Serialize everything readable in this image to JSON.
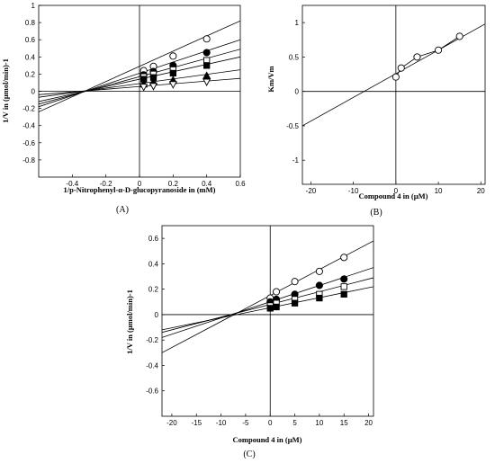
{
  "chart_data": [
    {
      "id": "A",
      "type": "line",
      "panel_label": "(A)",
      "xlabel": "1/p-Nitrophenyl-α-D-glucopyranoside in (mM)",
      "ylabel": "1/V in (µmol/min)-1",
      "xlim": [
        -0.6,
        0.6
      ],
      "ylim": [
        -1.0,
        1.0
      ],
      "xticks": [
        "-0.4",
        "-0.2",
        "0",
        "0.2",
        "0.4",
        "0.6"
      ],
      "yticks": [
        "-0.8",
        "-0.6",
        "-0.4",
        "-0.2",
        "0",
        "0.2",
        "0.4",
        "0.6",
        "0.8",
        "1"
      ],
      "series": [
        {
          "marker": "open-circle",
          "x": [
            0.025,
            0.083,
            0.2,
            0.4
          ],
          "y": [
            0.24,
            0.29,
            0.41,
            0.61
          ],
          "fit": {
            "x": [
              -0.6,
              0.6
            ],
            "y": [
              -0.24,
              0.82
            ]
          }
        },
        {
          "marker": "filled-circle",
          "x": [
            0.025,
            0.083,
            0.2,
            0.4
          ],
          "y": [
            0.19,
            0.23,
            0.3,
            0.45
          ],
          "fit": {
            "x": [
              -0.6,
              0.6
            ],
            "y": [
              -0.18,
              0.6
            ]
          }
        },
        {
          "marker": "open-square",
          "x": [
            0.025,
            0.083,
            0.2,
            0.4
          ],
          "y": [
            0.17,
            0.2,
            0.25,
            0.36
          ],
          "fit": {
            "x": [
              -0.6,
              0.6
            ],
            "y": [
              -0.15,
              0.49
            ]
          }
        },
        {
          "marker": "filled-square",
          "x": [
            0.025,
            0.083,
            0.2,
            0.4
          ],
          "y": [
            0.14,
            0.16,
            0.21,
            0.3
          ],
          "fit": {
            "x": [
              -0.6,
              0.6
            ],
            "y": [
              -0.12,
              0.4
            ]
          }
        },
        {
          "marker": "filled-triangle",
          "x": [
            0.025,
            0.083,
            0.2,
            0.4
          ],
          "y": [
            0.08,
            0.11,
            0.13,
            0.18
          ],
          "fit": {
            "x": [
              -0.6,
              0.6
            ],
            "y": [
              -0.07,
              0.25
            ]
          }
        },
        {
          "marker": "open-triangle-down",
          "x": [
            0.025,
            0.083,
            0.2,
            0.4
          ],
          "y": [
            0.05,
            0.06,
            0.08,
            0.11
          ],
          "fit": {
            "x": [
              -0.6,
              0.6
            ],
            "y": [
              -0.04,
              0.15
            ]
          }
        }
      ]
    },
    {
      "id": "B",
      "type": "line",
      "panel_label": "(B)",
      "xlabel": "Compound 4 in (µM)",
      "ylabel": "Km/Vm",
      "xlim": [
        -22,
        21
      ],
      "ylim": [
        -1.35,
        1.25
      ],
      "xticks": [
        "-20",
        "-10",
        "0",
        "10",
        "20"
      ],
      "yticks": [
        "-1",
        "-0.5",
        "0",
        "0.5",
        "1"
      ],
      "series": [
        {
          "marker": "open-circle",
          "x": [
            0,
            1.25,
            5,
            10,
            15
          ],
          "y": [
            0.21,
            0.34,
            0.5,
            0.6,
            0.8
          ],
          "connect": true,
          "fit": {
            "x": [
              -22,
              21
            ],
            "y": [
              -0.5,
              0.98
            ]
          }
        }
      ]
    },
    {
      "id": "C",
      "type": "line",
      "panel_label": "(C)",
      "xlabel": "Compound 4 in (µM)",
      "ylabel": "1/V in (µmol/min)-1",
      "xlim": [
        -22,
        21
      ],
      "ylim": [
        -0.8,
        0.7
      ],
      "xticks": [
        "-20",
        "-15",
        "-10",
        "-5",
        "0",
        "5",
        "10",
        "15",
        "20"
      ],
      "yticks": [
        "-0.6",
        "-0.4",
        "-0.2",
        "0",
        "0.2",
        "0.4",
        "0.6"
      ],
      "series": [
        {
          "marker": "open-circle",
          "x": [
            0,
            1.25,
            5,
            10,
            15
          ],
          "y": [
            0.13,
            0.18,
            0.26,
            0.34,
            0.45
          ],
          "fit": {
            "x": [
              -22,
              21
            ],
            "y": [
              -0.3,
              0.58
            ]
          }
        },
        {
          "marker": "filled-circle",
          "x": [
            0,
            1.25,
            5,
            10,
            15
          ],
          "y": [
            0.1,
            0.12,
            0.16,
            0.23,
            0.28
          ],
          "fit": {
            "x": [
              -22,
              21
            ],
            "y": [
              -0.18,
              0.37
            ]
          }
        },
        {
          "marker": "open-square",
          "x": [
            0,
            1.25,
            5,
            10,
            15
          ],
          "y": [
            0.07,
            0.09,
            0.12,
            0.16,
            0.22
          ],
          "fit": {
            "x": [
              -22,
              21
            ],
            "y": [
              -0.14,
              0.29
            ]
          }
        },
        {
          "marker": "filled-square",
          "x": [
            0,
            1.25,
            5,
            10,
            15
          ],
          "y": [
            0.05,
            0.06,
            0.09,
            0.13,
            0.16
          ],
          "fit": {
            "x": [
              -22,
              21
            ],
            "y": [
              -0.12,
              0.22
            ]
          }
        }
      ]
    }
  ]
}
